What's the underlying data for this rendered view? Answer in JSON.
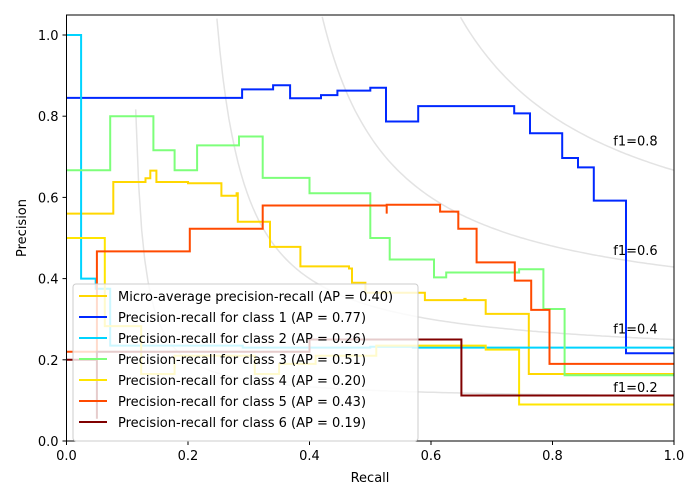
{
  "chart_data": {
    "type": "line",
    "title": "",
    "xlabel": "Recall",
    "ylabel": "Precision",
    "xlim": [
      0.0,
      1.0
    ],
    "ylim": [
      0.0,
      1.05
    ],
    "xticks": [
      "0.0",
      "0.2",
      "0.4",
      "0.6",
      "0.8",
      "1.0"
    ],
    "yticks": [
      "0.0",
      "0.2",
      "0.4",
      "0.6",
      "0.8",
      "1.0"
    ],
    "xtick_values": [
      0.0,
      0.2,
      0.4,
      0.6,
      0.8,
      1.0
    ],
    "ytick_values": [
      0.0,
      0.2,
      0.4,
      0.6,
      0.8,
      1.0
    ],
    "grid": false,
    "legend_position": "lower-left",
    "drawstyle": "steps-post",
    "iso_f1_curves": [
      {
        "f1": 0.2,
        "label": "f1=0.2"
      },
      {
        "f1": 0.4,
        "label": "f1=0.4"
      },
      {
        "f1": 0.6,
        "label": "f1=0.6"
      },
      {
        "f1": 0.8,
        "label": "f1=0.8"
      }
    ],
    "iso_f1_color": "#e3e3e3",
    "series": [
      {
        "name": "Micro-average precision-recall (AP = 0.40)",
        "color": "#ffd700",
        "points": [
          [
            0.0,
            0.56
          ],
          [
            0.077,
            0.56
          ],
          [
            0.077,
            0.638
          ],
          [
            0.13,
            0.638
          ],
          [
            0.13,
            0.647
          ],
          [
            0.138,
            0.647
          ],
          [
            0.138,
            0.666
          ],
          [
            0.148,
            0.666
          ],
          [
            0.148,
            0.638
          ],
          [
            0.2,
            0.638
          ],
          [
            0.2,
            0.635
          ],
          [
            0.255,
            0.635
          ],
          [
            0.255,
            0.604
          ],
          [
            0.28,
            0.604
          ],
          [
            0.28,
            0.61
          ],
          [
            0.282,
            0.61
          ],
          [
            0.282,
            0.54
          ],
          [
            0.335,
            0.54
          ],
          [
            0.335,
            0.478
          ],
          [
            0.385,
            0.478
          ],
          [
            0.385,
            0.43
          ],
          [
            0.465,
            0.43
          ],
          [
            0.465,
            0.425
          ],
          [
            0.47,
            0.425
          ],
          [
            0.47,
            0.39
          ],
          [
            0.492,
            0.39
          ],
          [
            0.492,
            0.365
          ],
          [
            0.59,
            0.365
          ],
          [
            0.59,
            0.347
          ],
          [
            0.655,
            0.347
          ],
          [
            0.655,
            0.35
          ],
          [
            0.657,
            0.35
          ],
          [
            0.657,
            0.347
          ],
          [
            0.69,
            0.347
          ],
          [
            0.69,
            0.313
          ],
          [
            0.761,
            0.313
          ],
          [
            0.761,
            0.165
          ],
          [
            1.0,
            0.165
          ]
        ]
      },
      {
        "name": "Precision-recall for class 1 (AP = 0.77)",
        "color": "#0028ff",
        "points": [
          [
            0.0,
            0.845
          ],
          [
            0.289,
            0.845
          ],
          [
            0.289,
            0.866
          ],
          [
            0.34,
            0.866
          ],
          [
            0.34,
            0.876
          ],
          [
            0.368,
            0.876
          ],
          [
            0.368,
            0.844
          ],
          [
            0.419,
            0.844
          ],
          [
            0.419,
            0.852
          ],
          [
            0.446,
            0.852
          ],
          [
            0.446,
            0.863
          ],
          [
            0.5,
            0.863
          ],
          [
            0.5,
            0.87
          ],
          [
            0.526,
            0.87
          ],
          [
            0.526,
            0.787
          ],
          [
            0.579,
            0.787
          ],
          [
            0.579,
            0.825
          ],
          [
            0.737,
            0.825
          ],
          [
            0.737,
            0.807
          ],
          [
            0.763,
            0.807
          ],
          [
            0.763,
            0.758
          ],
          [
            0.816,
            0.758
          ],
          [
            0.816,
            0.697
          ],
          [
            0.842,
            0.697
          ],
          [
            0.842,
            0.674
          ],
          [
            0.868,
            0.674
          ],
          [
            0.868,
            0.592
          ],
          [
            0.921,
            0.592
          ],
          [
            0.921,
            0.216
          ],
          [
            1.0,
            0.216
          ]
        ]
      },
      {
        "name": "Precision-recall for class 2 (AP = 0.26)",
        "color": "#00d4ff",
        "points": [
          [
            0.0,
            1.0
          ],
          [
            0.024,
            1.0
          ],
          [
            0.024,
            0.4
          ],
          [
            0.048,
            0.4
          ],
          [
            0.048,
            0.375
          ],
          [
            0.072,
            0.375
          ],
          [
            0.072,
            0.235
          ],
          [
            0.29,
            0.235
          ],
          [
            0.29,
            0.23
          ],
          [
            0.5,
            0.23
          ],
          [
            0.5,
            0.232
          ],
          [
            0.57,
            0.232
          ],
          [
            0.57,
            0.23
          ],
          [
            1.0,
            0.23
          ]
        ]
      },
      {
        "name": "Precision-recall for class 3 (AP = 0.51)",
        "color": "#7dff7a",
        "points": [
          [
            0.0,
            0.667
          ],
          [
            0.072,
            0.667
          ],
          [
            0.072,
            0.8
          ],
          [
            0.143,
            0.8
          ],
          [
            0.143,
            0.716
          ],
          [
            0.178,
            0.716
          ],
          [
            0.178,
            0.667
          ],
          [
            0.215,
            0.667
          ],
          [
            0.215,
            0.728
          ],
          [
            0.284,
            0.728
          ],
          [
            0.284,
            0.75
          ],
          [
            0.323,
            0.75
          ],
          [
            0.323,
            0.648
          ],
          [
            0.4,
            0.648
          ],
          [
            0.4,
            0.61
          ],
          [
            0.5,
            0.61
          ],
          [
            0.5,
            0.5
          ],
          [
            0.532,
            0.5
          ],
          [
            0.532,
            0.447
          ],
          [
            0.605,
            0.447
          ],
          [
            0.605,
            0.403
          ],
          [
            0.625,
            0.403
          ],
          [
            0.625,
            0.415
          ],
          [
            0.745,
            0.415
          ],
          [
            0.745,
            0.423
          ],
          [
            0.785,
            0.423
          ],
          [
            0.785,
            0.325
          ],
          [
            0.82,
            0.325
          ],
          [
            0.82,
            0.162
          ],
          [
            1.0,
            0.162
          ]
        ]
      },
      {
        "name": "Precision-recall for class 4 (AP = 0.20)",
        "color": "#ffe500",
        "points": [
          [
            0.0,
            0.5
          ],
          [
            0.063,
            0.5
          ],
          [
            0.063,
            0.283
          ],
          [
            0.123,
            0.283
          ],
          [
            0.123,
            0.165
          ],
          [
            0.178,
            0.165
          ],
          [
            0.178,
            0.21
          ],
          [
            0.31,
            0.21
          ],
          [
            0.31,
            0.165
          ],
          [
            0.35,
            0.165
          ],
          [
            0.35,
            0.19
          ],
          [
            0.41,
            0.19
          ],
          [
            0.41,
            0.21
          ],
          [
            0.51,
            0.21
          ],
          [
            0.51,
            0.235
          ],
          [
            0.69,
            0.235
          ],
          [
            0.69,
            0.225
          ],
          [
            0.745,
            0.225
          ],
          [
            0.745,
            0.09
          ],
          [
            1.0,
            0.09
          ]
        ]
      },
      {
        "name": "Precision-recall for class 5 (AP = 0.43)",
        "color": "#ff4a00",
        "points": [
          [
            0.0,
            0.22
          ],
          [
            0.05,
            0.22
          ],
          [
            0.05,
            0.467
          ],
          [
            0.203,
            0.467
          ],
          [
            0.203,
            0.523
          ],
          [
            0.323,
            0.523
          ],
          [
            0.323,
            0.58
          ],
          [
            0.527,
            0.58
          ],
          [
            0.527,
            0.56
          ],
          [
            0.527,
            0.582
          ],
          [
            0.615,
            0.582
          ],
          [
            0.615,
            0.565
          ],
          [
            0.645,
            0.565
          ],
          [
            0.645,
            0.523
          ],
          [
            0.675,
            0.523
          ],
          [
            0.675,
            0.44
          ],
          [
            0.738,
            0.44
          ],
          [
            0.738,
            0.395
          ],
          [
            0.765,
            0.395
          ],
          [
            0.765,
            0.323
          ],
          [
            0.795,
            0.323
          ],
          [
            0.795,
            0.19
          ],
          [
            1.0,
            0.19
          ]
        ]
      },
      {
        "name": "Precision-recall for class 6 (AP = 0.19)",
        "color": "#800000",
        "points": [
          [
            0.0,
            0.2
          ],
          [
            0.05,
            0.2
          ],
          [
            0.05,
            0.055
          ],
          [
            0.05,
            0.22
          ],
          [
            0.4,
            0.22
          ],
          [
            0.4,
            0.25
          ],
          [
            0.65,
            0.25
          ],
          [
            0.65,
            0.112
          ],
          [
            1.0,
            0.112
          ]
        ]
      }
    ]
  }
}
